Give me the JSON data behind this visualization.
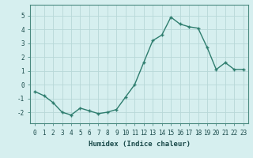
{
  "x": [
    0,
    1,
    2,
    3,
    4,
    5,
    6,
    7,
    8,
    9,
    10,
    11,
    12,
    13,
    14,
    15,
    16,
    17,
    18,
    19,
    20,
    21,
    22,
    23
  ],
  "y": [
    -0.5,
    -0.8,
    -1.3,
    -2.0,
    -2.2,
    -1.7,
    -1.9,
    -2.1,
    -2.0,
    -1.8,
    -0.9,
    0.0,
    1.6,
    3.2,
    3.6,
    4.9,
    4.4,
    4.2,
    4.1,
    2.7,
    1.1,
    1.6,
    1.1,
    1.1
  ],
  "line_color": "#2e7d6e",
  "marker": "+",
  "marker_size": 3.5,
  "bg_color": "#d6efef",
  "grid_color": "#b8d8d8",
  "xlabel": "Humidex (Indice chaleur)",
  "xlim": [
    -0.5,
    23.5
  ],
  "ylim": [
    -2.8,
    5.8
  ],
  "yticks": [
    -2,
    -1,
    0,
    1,
    2,
    3,
    4,
    5
  ],
  "xticks": [
    0,
    1,
    2,
    3,
    4,
    5,
    6,
    7,
    8,
    9,
    10,
    11,
    12,
    13,
    14,
    15,
    16,
    17,
    18,
    19,
    20,
    21,
    22,
    23
  ],
  "tick_label_size": 5.5,
  "xlabel_size": 6.5,
  "line_width": 1.0,
  "spine_color": "#4a8a80",
  "tick_color": "#2e6060",
  "label_color": "#1a4a4a"
}
